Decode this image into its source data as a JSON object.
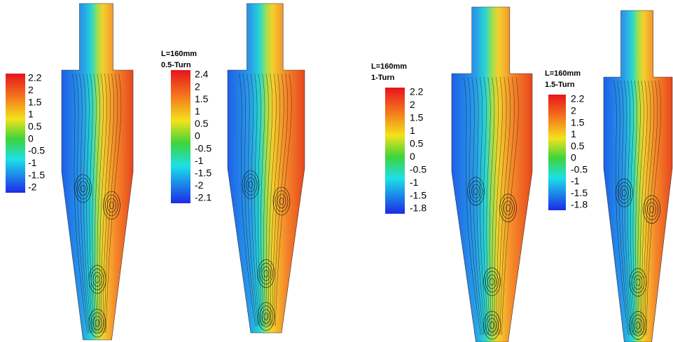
{
  "panels": [
    {
      "title": [],
      "colorbar": [
        "2.2",
        "2",
        "1.5",
        "1",
        "0.5",
        "0",
        "-0.5",
        "-1",
        "-1.5",
        "-2"
      ]
    },
    {
      "title": [
        "L=160mm",
        "0.5-Turn"
      ],
      "colorbar": [
        "2.4",
        "2",
        "1.5",
        "1",
        "0.5",
        "0",
        "-0.5",
        "-1",
        "-1.5",
        "-2",
        "-2.1"
      ]
    },
    {
      "title": [
        "L=160mm",
        "1-Turn"
      ],
      "colorbar": [
        "2.2",
        "2",
        "1.5",
        "1",
        "0.5",
        "0",
        "-0.5",
        "-1",
        "-1.5",
        "-1.8"
      ]
    },
    {
      "title": [
        "L=160mm",
        "1.5-Turn"
      ],
      "colorbar": [
        "2.2",
        "2",
        "1.5",
        "1",
        "0.5",
        "0",
        "-0.5",
        "-1",
        "-1.5",
        "-1.8"
      ]
    }
  ]
}
